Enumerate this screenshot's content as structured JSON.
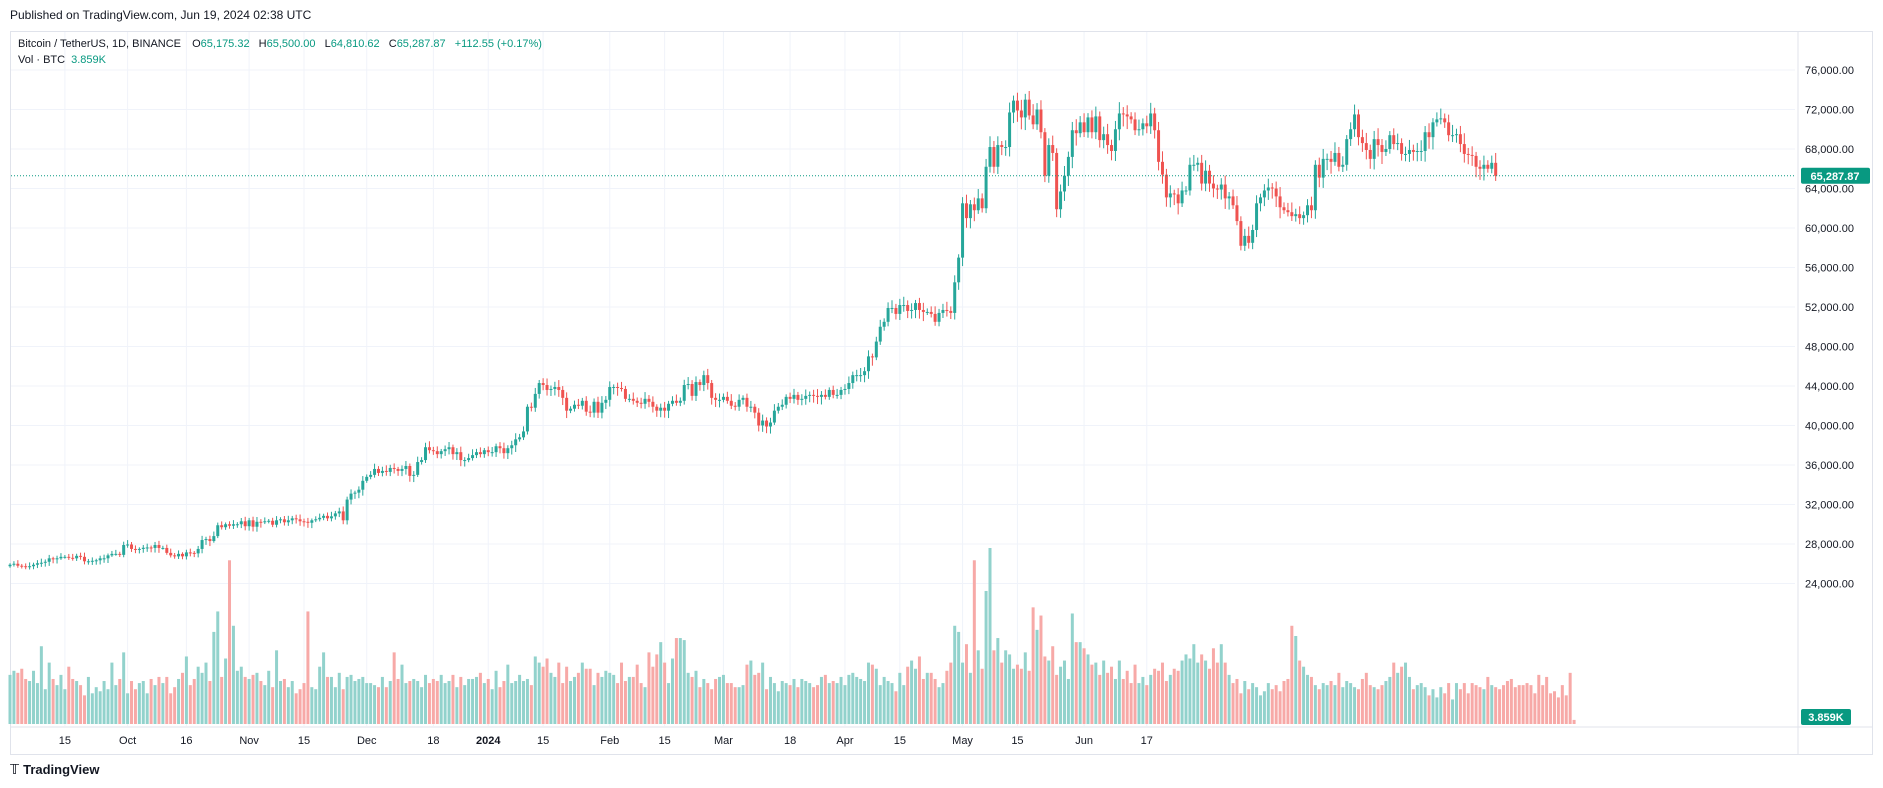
{
  "published": {
    "text": "Published on TradingView.com, Jun 19, 2024 02:38 UTC"
  },
  "legend": {
    "symbol": "Bitcoin / TetherUS, 1D, BINANCE",
    "open_label": "O",
    "open": "65,175.32",
    "high_label": "H",
    "high": "65,500.00",
    "low_label": "L",
    "low": "64,810.62",
    "close_label": "C",
    "close": "65,287.87",
    "change": "+112.55 (+0.17%)",
    "vol_label": "Vol · BTC",
    "vol_value": "3.859K"
  },
  "footer": {
    "brand": "TradingView"
  },
  "colors": {
    "up": "#26a69a",
    "down": "#ef5350",
    "up_vol": "#92d2cc",
    "down_vol": "#f7a9a7",
    "grid": "#f0f3fa",
    "last_price": "#089981"
  },
  "chart_data": {
    "type": "candlestick",
    "symbol": "BTCUSDT",
    "timeframe": "1D",
    "price_axis": {
      "ticks": [
        24000,
        28000,
        32000,
        36000,
        40000,
        44000,
        48000,
        52000,
        56000,
        60000,
        64000,
        68000,
        72000,
        76000
      ],
      "tick_labels": [
        "24,000.00",
        "28,000.00",
        "32,000.00",
        "36,000.00",
        "40,000.00",
        "44,000.00",
        "48,000.00",
        "52,000.00",
        "56,000.00",
        "60,000.00",
        "64,000.00",
        "68,000.00",
        "72,000.00",
        "76,000.00"
      ],
      "last_price": 65287.87,
      "last_price_label": "65,287.87"
    },
    "volume_axis": {
      "last_volume_label": "3.859K"
    },
    "x_axis": {
      "labels": [
        {
          "text": "15",
          "date": "2023-09-15"
        },
        {
          "text": "Oct",
          "date": "2023-10-01"
        },
        {
          "text": "16",
          "date": "2023-10-16"
        },
        {
          "text": "Nov",
          "date": "2023-11-01"
        },
        {
          "text": "15",
          "date": "2023-11-15"
        },
        {
          "text": "Dec",
          "date": "2023-12-01"
        },
        {
          "text": "18",
          "date": "2023-12-18"
        },
        {
          "text": "2024",
          "date": "2024-01-01"
        },
        {
          "text": "15",
          "date": "2024-01-15"
        },
        {
          "text": "Feb",
          "date": "2024-02-01"
        },
        {
          "text": "15",
          "date": "2024-02-15"
        },
        {
          "text": "Mar",
          "date": "2024-03-01"
        },
        {
          "text": "18",
          "date": "2024-03-18"
        },
        {
          "text": "Apr",
          "date": "2024-04-01"
        },
        {
          "text": "15",
          "date": "2024-04-15"
        },
        {
          "text": "May",
          "date": "2024-05-01"
        },
        {
          "text": "15",
          "date": "2024-05-15"
        },
        {
          "text": "Jun",
          "date": "2024-06-01"
        },
        {
          "text": "17",
          "date": "2024-06-17"
        }
      ]
    },
    "start_date": "2023-09-01",
    "closes": [
      25900,
      26000,
      25800,
      25750,
      25700,
      25750,
      25900,
      26050,
      26100,
      26200,
      26550,
      26500,
      26550,
      26700,
      26700,
      26600,
      26550,
      26800,
      26700,
      26250,
      26250,
      26300,
      26350,
      26550,
      26550,
      26850,
      27000,
      27000,
      26900,
      27900,
      27950,
      27500,
      27400,
      27500,
      27620,
      27650,
      27600,
      27900,
      27600,
      27600,
      27100,
      26850,
      26750,
      27000,
      26750,
      27150,
      27100,
      27050,
      27500,
      28400,
      28500,
      28300,
      28800,
      29900,
      29700,
      30000,
      29850,
      30000,
      30000,
      30300,
      29800,
      30400,
      29750,
      30250,
      30200,
      30300,
      30350,
      29950,
      30400,
      30500,
      30200,
      30400,
      30600,
      30500,
      30300,
      30250,
      30150,
      30400,
      30500,
      30650,
      30850,
      30600,
      30800,
      31100,
      31300,
      30400,
      32500,
      33100,
      33200,
      33500,
      34400,
      34800,
      35000,
      35600,
      35200,
      35400,
      35300,
      35700,
      35600,
      35400,
      35600,
      35900,
      34900,
      35000,
      36300,
      36500,
      37800,
      37500,
      37400,
      37100,
      37400,
      37600,
      37800,
      37100,
      37300,
      36500,
      36500,
      36700,
      37000,
      37300,
      37100,
      37500,
      37300,
      37300,
      37900,
      37700,
      37200,
      37700,
      38000,
      38600,
      38800,
      39400,
      41900,
      41800,
      43200,
      44300,
      44100,
      43600,
      43700,
      43900,
      43600,
      42800,
      41500,
      41700,
      42100,
      42000,
      42500,
      41400,
      41300,
      42400,
      41300,
      42300,
      42600,
      43900,
      43900,
      43800,
      43700,
      42700,
      42700,
      42500,
      42300,
      42200,
      42700,
      42400,
      41900,
      41500,
      41800,
      41500,
      42200,
      42500,
      42300,
      42500,
      44100,
      44200,
      43000,
      44400,
      44100,
      45100,
      44300,
      42800,
      42600,
      42600,
      42900,
      42500,
      42000,
      41900,
      42600,
      42800,
      41900,
      41900,
      41300,
      40000,
      40500,
      39900,
      40300,
      41500,
      41900,
      42100,
      42900,
      42700,
      43100,
      42600,
      42700,
      43000,
      43100,
      43000,
      42900,
      43100,
      42900,
      43600,
      43100,
      43100,
      43600,
      43700,
      44300,
      45100,
      45100,
      45100,
      45500,
      47000,
      46900,
      48500,
      50000,
      50500,
      51900,
      51900,
      51300,
      52200,
      52200,
      51600,
      51700,
      52400,
      51700,
      51500,
      51500,
      51300,
      50500,
      51400,
      51700,
      51600,
      51400,
      54500,
      57000,
      62500,
      61000,
      62400,
      61800,
      63000,
      62000,
      66200,
      68200,
      66200,
      68400,
      68200,
      68200,
      71700,
      72900,
      71900,
      71200,
      73000,
      71400,
      70500,
      72000,
      69700,
      65300,
      68400,
      67600,
      61900,
      63700,
      65300,
      67200,
      69900,
      69600,
      70700,
      69700,
      71200,
      69700,
      71300,
      68900,
      69500,
      68400,
      67800,
      70000,
      71600,
      71500,
      71300,
      71000,
      69900,
      70000,
      70600,
      70300,
      71600,
      69900,
      66700,
      65400,
      63100,
      63500,
      63400,
      62500,
      63800,
      63800,
      66400,
      66400,
      66600,
      64500,
      65800,
      64500,
      64000,
      63900,
      64400,
      63000,
      63200,
      62300,
      60700,
      58200,
      59200,
      58500,
      59800,
      62500,
      63100,
      63800,
      64100,
      64000,
      63200,
      62100,
      61800,
      61600,
      61200,
      61400,
      61000,
      61300,
      62300,
      61800,
      66400,
      65100,
      67000,
      67000,
      66700,
      67600,
      66200,
      66400,
      69000,
      70000,
      71500,
      69200,
      68600,
      67900,
      67000,
      69000,
      68400,
      67700,
      68000,
      69400,
      68500,
      68600,
      67500,
      67500,
      67900,
      67700,
      67800,
      67800,
      69700,
      69200,
      70700,
      71000,
      71100,
      70700,
      69400,
      69400,
      69500,
      68500,
      67500,
      67400,
      67300,
      66200,
      66000,
      66400,
      66000,
      66600,
      65287.87
    ],
    "volume_scale_note": "relative volume units (0-100)",
    "volumes": [
      24,
      26,
      25,
      27,
      22,
      21,
      26,
      20,
      38,
      17,
      30,
      22,
      19,
      24,
      17,
      28,
      22,
      21,
      19,
      14,
      23,
      15,
      18,
      16,
      21,
      17,
      30,
      19,
      22,
      35,
      15,
      21,
      17,
      20,
      21,
      15,
      22,
      19,
      23,
      20,
      23,
      15,
      18,
      22,
      25,
      33,
      19,
      22,
      28,
      25,
      30,
      21,
      45,
      55,
      23,
      32,
      80,
      48,
      26,
      28,
      23,
      22,
      24,
      25,
      21,
      19,
      26,
      18,
      36,
      21,
      22,
      18,
      21,
      15,
      17,
      20,
      55,
      18,
      17,
      28,
      35,
      23,
      23,
      18,
      25,
      17,
      23,
      24,
      21,
      22,
      23,
      20,
      20,
      19,
      18,
      23,
      18,
      21,
      35,
      22,
      29,
      20,
      21,
      22,
      21,
      18,
      24,
      20,
      22,
      21,
      24,
      20,
      21,
      24,
      18,
      23,
      19,
      22,
      22,
      23,
      25,
      20,
      22,
      17,
      26,
      18,
      21,
      29,
      20,
      21,
      24,
      21,
      22,
      19,
      33,
      30,
      28,
      32,
      25,
      23,
      30,
      20,
      28,
      21,
      23,
      25,
      30,
      27,
      27,
      19,
      25,
      23,
      26,
      25,
      24,
      20,
      30,
      21,
      23,
      23,
      29,
      20,
      18,
      35,
      28,
      34,
      40,
      30,
      20,
      32,
      42,
      42,
      41,
      25,
      23,
      26,
      18,
      22,
      20,
      17,
      22,
      23,
      24,
      20,
      20,
      18,
      18,
      19,
      29,
      31,
      24,
      25,
      30,
      17,
      23,
      20,
      16,
      21,
      20,
      19,
      22,
      18,
      22,
      21,
      20,
      18,
      19,
      23,
      24,
      20,
      21,
      20,
      23,
      19,
      24,
      25,
      23,
      22,
      21,
      30,
      29,
      27,
      19,
      23,
      21,
      20,
      16,
      25,
      19,
      28,
      31,
      27,
      33,
      22,
      25,
      25,
      22,
      18,
      20,
      26,
      30,
      48,
      45,
      30,
      39,
      25,
      80,
      36,
      27,
      65,
      86,
      36,
      42,
      30,
      36,
      34,
      27,
      29,
      27,
      35,
      26,
      57,
      46,
      53,
      33,
      31,
      38,
      24,
      28,
      31,
      22,
      54,
      40,
      40,
      37,
      34,
      29,
      30,
      24,
      31,
      25,
      28,
      22,
      31,
      22,
      26,
      20,
      29,
      20,
      23,
      19,
      24,
      27,
      26,
      30,
      21,
      24,
      27,
      26,
      31,
      34,
      32,
      39,
      30,
      34,
      31,
      27,
      37,
      30,
      39,
      30,
      24,
      20,
      22,
      15,
      21,
      17,
      20,
      18,
      14,
      16,
      20,
      17,
      19,
      16,
      21,
      22,
      48,
      43,
      31,
      28,
      24,
      23,
      19,
      17,
      20,
      19,
      21,
      19,
      25,
      18,
      21,
      20,
      18,
      17,
      22,
      25,
      19,
      18,
      17,
      19,
      21,
      23,
      30,
      25,
      28,
      30,
      23,
      17,
      19,
      20,
      18,
      14,
      17,
      13,
      18,
      15,
      20,
      12,
      20,
      17,
      20,
      15,
      20,
      19,
      18,
      17,
      23,
      19,
      18,
      17,
      19,
      21,
      22,
      18,
      19,
      19,
      20,
      19,
      15,
      24,
      19,
      23,
      15,
      16,
      13,
      19,
      14,
      25,
      2
    ]
  }
}
